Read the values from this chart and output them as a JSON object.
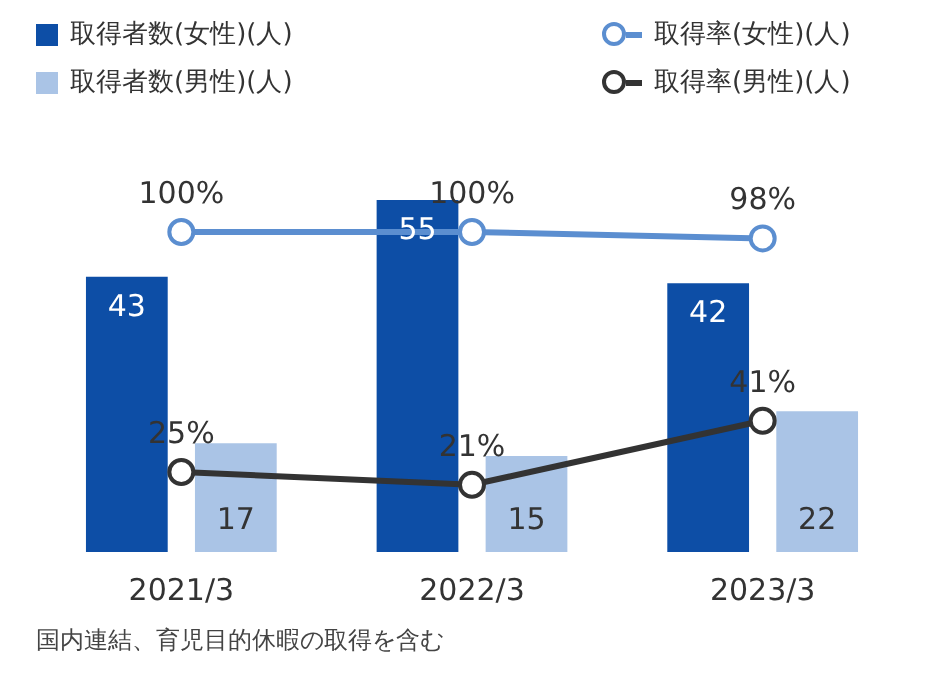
{
  "chart_data": {
    "type": "bar",
    "categories": [
      "2021/3",
      "2022/3",
      "2023/3"
    ],
    "series": [
      {
        "name": "取得者数(女性)(人)",
        "color": "#0d4ea6",
        "values": [
          43,
          55,
          42
        ],
        "value_labels": [
          "43",
          "55",
          "42"
        ]
      },
      {
        "name": "取得率(女性)(人)",
        "type": "line",
        "axis": "y2",
        "color": "#5b8ed0",
        "values": [
          100,
          100,
          98
        ],
        "value_labels": [
          "100%",
          "100%",
          "98%"
        ]
      },
      {
        "name": "取得者数(男性)(人)",
        "color": "#aac4e6",
        "values": [
          17,
          15,
          22
        ],
        "value_labels": [
          "17",
          "15",
          "22"
        ]
      },
      {
        "name": "取得率(男性)(人)",
        "type": "line",
        "axis": "y2",
        "color": "#333333",
        "values": [
          25,
          21,
          41
        ],
        "value_labels": [
          "25%",
          "21%",
          "41%"
        ]
      }
    ],
    "marker": "circle",
    "legend": "top",
    "grid": false,
    "annotations": [
      "国内連結、育児目的休暇の取得を含む"
    ]
  }
}
